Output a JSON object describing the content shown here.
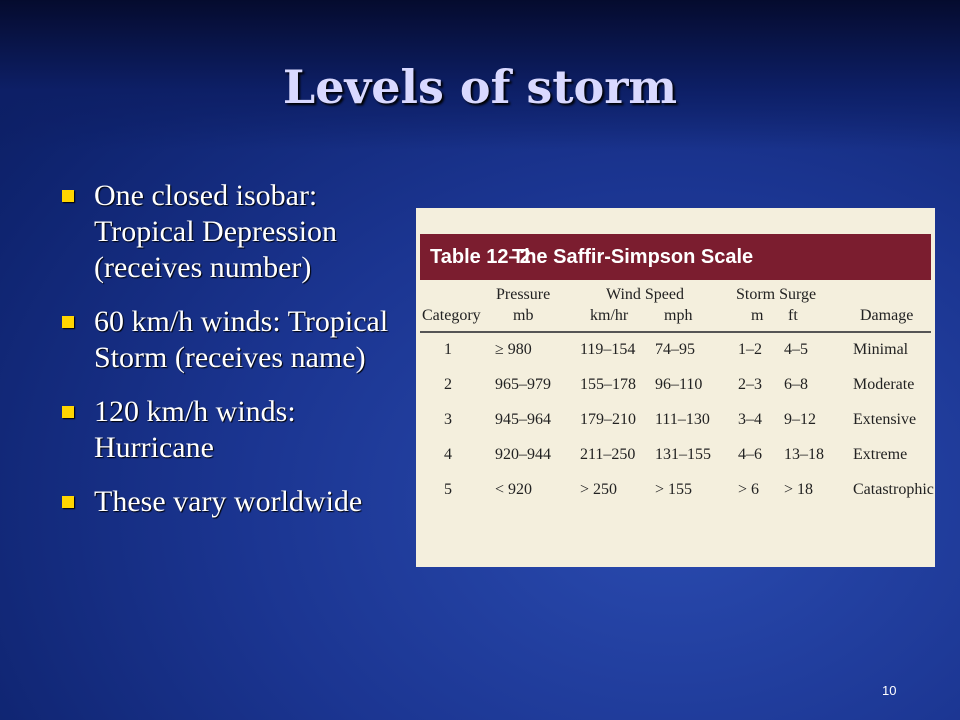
{
  "slide": {
    "title": "Levels of storm",
    "page_number": "10"
  },
  "bullets": [
    "One closed isobar: Tropical Depression (receives number)",
    "60 km/h winds: Tropical Storm (receives name)",
    "120 km/h winds: Hurricane",
    "These vary worldwide"
  ],
  "table": {
    "number": "Table 12–2",
    "name": "The Saffir-Simpson Scale",
    "group_headers": {
      "pressure": "Pressure",
      "wind_speed": "Wind Speed",
      "storm_surge": "Storm Surge"
    },
    "columns": {
      "category": "Category",
      "mb": "mb",
      "kmhr": "km/hr",
      "mph": "mph",
      "m": "m",
      "ft": "ft",
      "damage": "Damage"
    },
    "rows": [
      [
        "1",
        "≥ 980",
        "119–154",
        "74–95",
        "1–2",
        "4–5",
        "Minimal"
      ],
      [
        "2",
        "965–979",
        "155–178",
        "96–110",
        "2–3",
        "6–8",
        "Moderate"
      ],
      [
        "3",
        "945–964",
        "179–210",
        "111–130",
        "3–4",
        "9–12",
        "Extensive"
      ],
      [
        "4",
        "920–944",
        "211–250",
        "131–155",
        "4–6",
        "13–18",
        "Extreme"
      ],
      [
        "5",
        "< 920",
        "> 250",
        "> 155",
        "> 6",
        "> 18",
        "Catastrophic"
      ]
    ]
  },
  "colors": {
    "background": "#1b3591",
    "title_text": "#d9d9ff",
    "bullet_marker": "#ffd500",
    "table_header_band": "#7b1d2f",
    "table_background": "#f4efdd"
  }
}
